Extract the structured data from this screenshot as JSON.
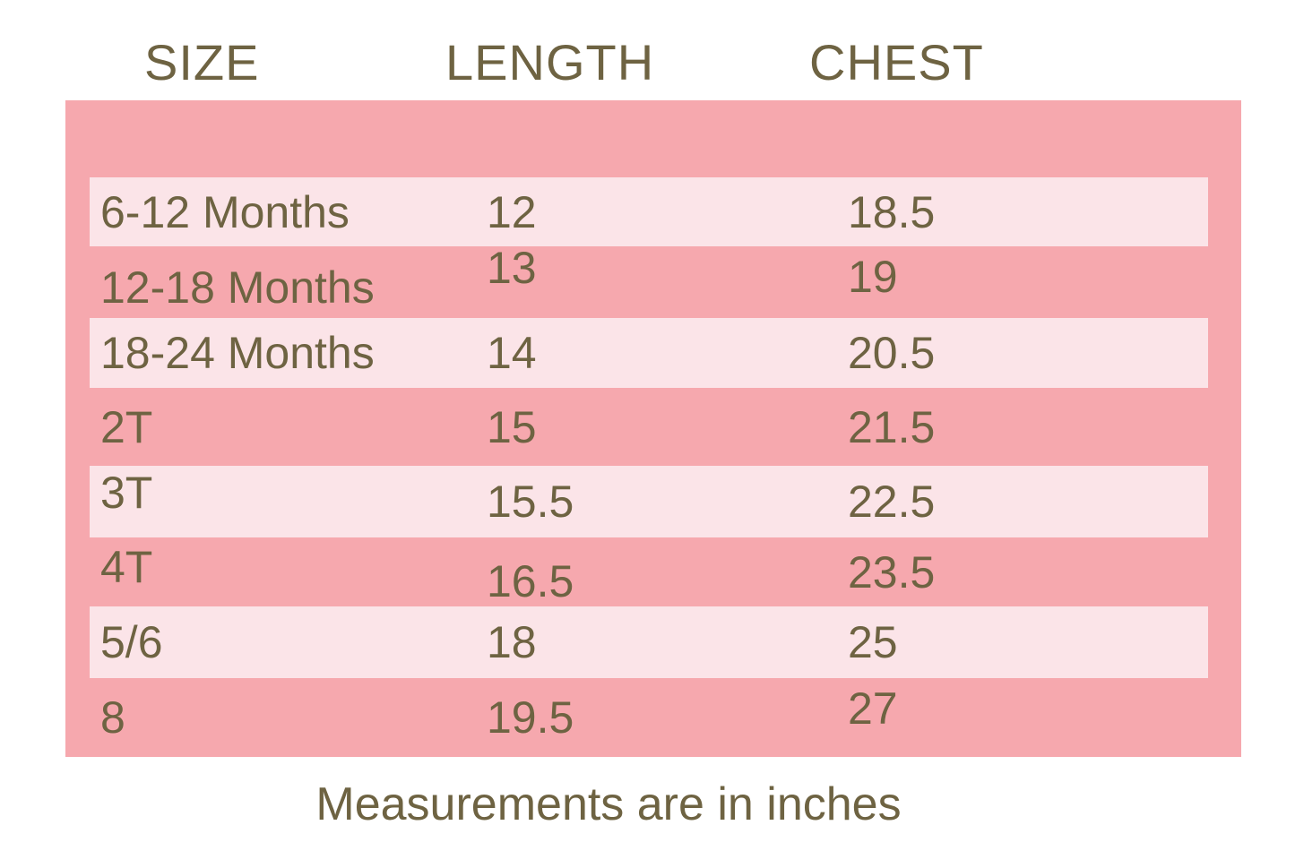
{
  "chart_data": {
    "type": "table",
    "title": "",
    "columns": [
      "SIZE",
      "LENGTH",
      "CHEST"
    ],
    "rows": [
      [
        "6-12 Months",
        "12",
        "18.5"
      ],
      [
        "12-18 Months",
        "13",
        "19"
      ],
      [
        "18-24 Months",
        "14",
        "20.5"
      ],
      [
        "2T",
        "15",
        "21.5"
      ],
      [
        "3T",
        "15.5",
        "22.5"
      ],
      [
        "4T",
        "16.5",
        "23.5"
      ],
      [
        "5/6",
        "18",
        "25"
      ],
      [
        "8",
        "19.5",
        "27"
      ]
    ],
    "note": "Measurements are in inches",
    "units": "inches",
    "legend_position": "none",
    "grid": false
  },
  "colors": {
    "panel_pink": "#F6A8AE",
    "row_light_pink": "#FBE4E8",
    "text_olive": "#6E6342",
    "page_background": "#FFFFFF"
  }
}
